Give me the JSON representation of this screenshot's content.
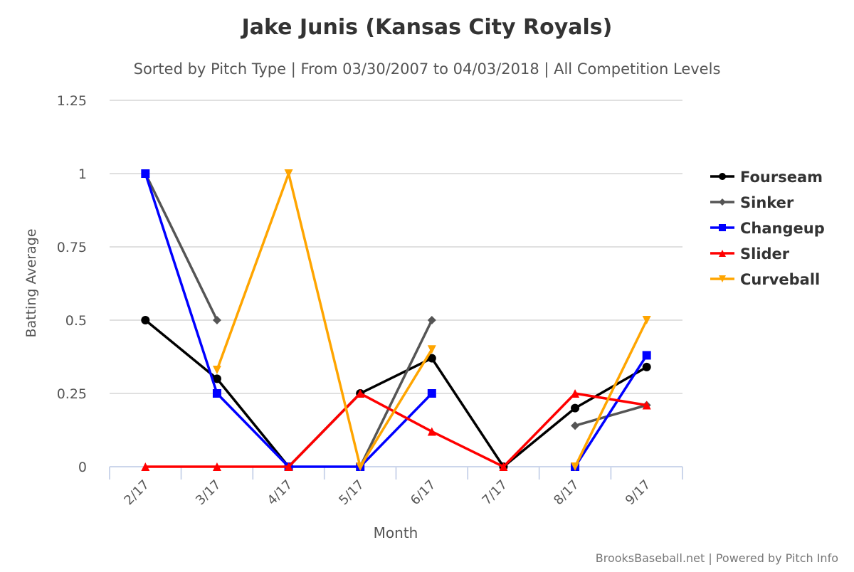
{
  "chart_data": {
    "type": "line",
    "title": "Jake Junis (Kansas City Royals)",
    "subtitle": "Sorted by Pitch Type | From 03/30/2007 to 04/03/2018 | All Competition Levels",
    "xlabel": "Month",
    "ylabel": "Batting Average",
    "categories": [
      "2/17",
      "3/17",
      "4/17",
      "5/17",
      "6/17",
      "7/17",
      "8/17",
      "9/17"
    ],
    "ylim": [
      0,
      1.25
    ],
    "yticks": [
      0,
      0.25,
      0.5,
      0.75,
      1,
      1.25
    ],
    "ytick_labels": [
      "0",
      "0.25",
      "0.5",
      "0.75",
      "1",
      "1.25"
    ],
    "grid": true,
    "legend_position": "right",
    "series": [
      {
        "name": "Fourseam",
        "color": "#000000",
        "marker": "circle",
        "values": [
          0.5,
          0.3,
          0,
          0.25,
          0.37,
          0,
          0.2,
          0.34
        ]
      },
      {
        "name": "Sinker",
        "color": "#555555",
        "marker": "diamond",
        "values": [
          1,
          0.5,
          null,
          0,
          0.5,
          null,
          0.14,
          0.21
        ]
      },
      {
        "name": "Changeup",
        "color": "#0000ff",
        "marker": "square",
        "values": [
          1,
          0.25,
          0,
          0,
          0.25,
          null,
          0,
          0.38
        ]
      },
      {
        "name": "Slider",
        "color": "#ff0000",
        "marker": "triangle",
        "values": [
          0,
          0,
          0,
          0.25,
          0.12,
          0,
          0.25,
          0.21
        ]
      },
      {
        "name": "Curveball",
        "color": "#ffa500",
        "marker": "triangle-down",
        "values": [
          null,
          0.33,
          1,
          0,
          0.4,
          null,
          0,
          0.5
        ]
      }
    ],
    "credits": "BrooksBaseball.net | Powered by Pitch Info"
  }
}
